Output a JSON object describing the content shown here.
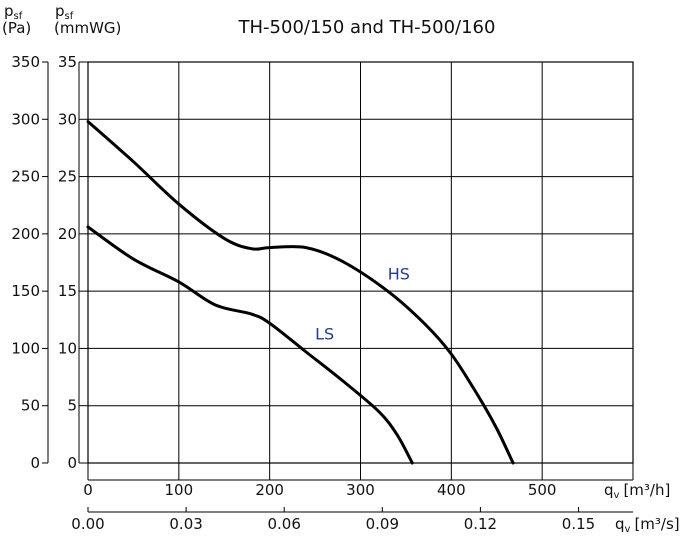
{
  "chart_data": {
    "type": "line",
    "title": "TH-500/150 and TH-500/160",
    "y_axis_pa": {
      "label_main": "p",
      "label_sub": "sf",
      "unit": "(Pa)",
      "ticks": [
        "0",
        "50",
        "100",
        "150",
        "200",
        "250",
        "300",
        "350"
      ],
      "ylim": [
        0,
        350
      ]
    },
    "y_axis_mmwg": {
      "label_main": "p",
      "label_sub": "sf",
      "unit": "(mmWG)",
      "ticks": [
        "0",
        "5",
        "10",
        "15",
        "20",
        "25",
        "30",
        "35"
      ],
      "ylim": [
        0,
        35
      ]
    },
    "x_axis_m3h": {
      "label_main": "q",
      "label_sub": "v",
      "unit": "[m³/h]",
      "ticks": [
        "0",
        "100",
        "200",
        "300",
        "400",
        "500"
      ],
      "xlim": [
        0,
        600
      ]
    },
    "x_axis_m3s": {
      "label_main": "q",
      "label_sub": "v",
      "unit": "[m³/s]",
      "ticks": [
        "0.00",
        "0.03",
        "0.06",
        "0.09",
        "0.12",
        "0.15"
      ]
    },
    "grid": true,
    "series": [
      {
        "name": "HS",
        "color": "#1f3d8a",
        "x": [
          0,
          50,
          100,
          150,
          180,
          200,
          240,
          280,
          330,
          370,
          400,
          430,
          450,
          468
        ],
        "y": [
          298,
          263,
          226,
          196,
          187,
          188,
          188,
          176,
          150,
          122,
          95,
          58,
          30,
          0
        ]
      },
      {
        "name": "LS",
        "color": "#1f3d8a",
        "x": [
          0,
          50,
          100,
          140,
          180,
          200,
          240,
          280,
          320,
          340,
          357
        ],
        "y": [
          206,
          178,
          158,
          138,
          130,
          122,
          97,
          72,
          45,
          25,
          0
        ]
      }
    ]
  }
}
